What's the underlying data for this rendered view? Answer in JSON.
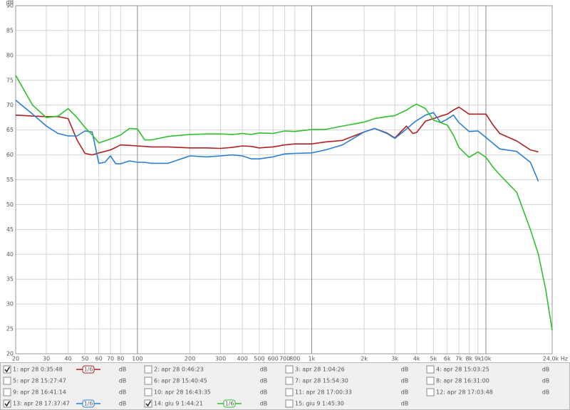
{
  "chart_data": {
    "type": "line",
    "y_unit": "dB",
    "log_x": true,
    "grid": true,
    "xlim": [
      20,
      24000
    ],
    "ylim": [
      20,
      90
    ],
    "yticks": [
      20,
      25,
      30,
      35,
      40,
      45,
      50,
      55,
      60,
      65,
      70,
      75,
      80,
      85,
      90
    ],
    "xticks": [
      20,
      30,
      40,
      50,
      60,
      70,
      80,
      100,
      200,
      300,
      400,
      500,
      600,
      700,
      800,
      {
        "value": 1000,
        "label": "1k"
      },
      {
        "value": 2000,
        "label": "2k"
      },
      {
        "value": 3000,
        "label": "3k"
      },
      {
        "value": 4000,
        "label": "4k"
      },
      {
        "value": 5000,
        "label": "5k"
      },
      {
        "value": 6000,
        "label": "6k"
      },
      {
        "value": 7000,
        "label": "7k"
      },
      {
        "value": 8000,
        "label": "8k"
      },
      {
        "value": 9000,
        "label": "9k"
      },
      {
        "value": 10000,
        "label": "10k"
      },
      {
        "value": 24000,
        "label": "24,0k Hz"
      }
    ],
    "x": [
      20,
      25,
      30,
      35,
      40,
      45,
      50,
      55,
      60,
      65,
      70,
      75,
      80,
      90,
      100,
      110,
      120,
      150,
      200,
      250,
      300,
      350,
      400,
      450,
      500,
      600,
      700,
      800,
      1000,
      1200,
      1500,
      2000,
      2300,
      2700,
      3000,
      3500,
      3800,
      4000,
      4500,
      5000,
      5500,
      6000,
      6500,
      7000,
      8000,
      9000,
      10000,
      11000,
      12000,
      15000,
      18000,
      20000,
      22000,
      24000
    ],
    "series": [
      {
        "name": "1: apr 28 0:35:48",
        "color": "#b02020",
        "label_color": "#c02828",
        "checked": true,
        "smoothing": "1/6",
        "values": [
          68,
          67.8,
          67.7,
          67.7,
          67.3,
          63,
          60.3,
          60,
          60.4,
          60.7,
          61,
          61.5,
          62,
          61.9,
          61.8,
          61.7,
          61.6,
          61.6,
          61.4,
          61.4,
          61.3,
          61.5,
          61.8,
          61.7,
          61.4,
          61.6,
          62,
          62.2,
          62.2,
          62.6,
          62.9,
          64.6,
          65.3,
          64.4,
          63.4,
          65.8,
          64.3,
          64.5,
          66.8,
          67.3,
          67.8,
          68.2,
          69,
          69.6,
          68.2,
          68.2,
          68.2,
          66,
          64.3,
          62.8,
          61,
          60.6,
          null,
          null
        ]
      },
      {
        "name": "13: apr 28 17:37:47",
        "color": "#2a7fd4",
        "label_color": "#2a70c8",
        "checked": true,
        "smoothing": "1/6",
        "values": [
          71,
          68.2,
          65.8,
          64.3,
          63.8,
          63.8,
          64.8,
          64.6,
          58.3,
          58.5,
          59.8,
          58.2,
          58.2,
          58.8,
          58.5,
          58.5,
          58.3,
          58.3,
          59.8,
          59.6,
          59.8,
          60,
          59.8,
          59.2,
          59.2,
          59.6,
          60.2,
          60.3,
          60.4,
          61,
          62,
          64.6,
          65.3,
          64.3,
          63.3,
          65.2,
          66.3,
          66.9,
          68,
          68.5,
          66.5,
          67.2,
          68,
          66.5,
          64.7,
          64.8,
          63.5,
          62.3,
          61.2,
          60.7,
          58.5,
          54.7,
          null,
          null
        ]
      },
      {
        "name": "14: giu 9 1:44:21",
        "color": "#2ec02e",
        "label_color": "#2a9a2a",
        "checked": true,
        "smoothing": "1/6",
        "values": [
          76,
          70,
          67.5,
          67.8,
          69.3,
          67.5,
          65.5,
          64,
          62.4,
          62.8,
          63.2,
          63.6,
          64,
          65.3,
          65.2,
          63,
          63,
          63.7,
          64.1,
          64.2,
          64.2,
          64.1,
          64.3,
          64.1,
          64.4,
          64.3,
          64.8,
          64.7,
          65.1,
          65.1,
          65.8,
          66.6,
          67.3,
          67.7,
          67.9,
          69,
          69.8,
          70.2,
          69.3,
          67,
          66.5,
          66,
          64,
          61.5,
          59.5,
          60.6,
          59.5,
          57.5,
          56,
          52.5,
          45,
          40,
          33,
          24.7
        ]
      }
    ],
    "other_measurements": [
      {
        "name": "2: apr 28 0:46:23",
        "color": "#c03a78",
        "checked": false
      },
      {
        "name": "3: apr 28 1:04:26",
        "color": "#20a080",
        "checked": false
      },
      {
        "name": "4: apr 28 15:03:25",
        "color": "#a040b0",
        "checked": false
      },
      {
        "name": "5: apr 28 15:27:47",
        "color": "#208c90",
        "checked": false
      },
      {
        "name": "6: apr 28 15:40:45",
        "color": "#a02828",
        "checked": false
      },
      {
        "name": "7: apr 28 15:54:30",
        "color": "#6040a8",
        "checked": false
      },
      {
        "name": "8: apr 28 16:31:00",
        "color": "#5080a8",
        "checked": false
      },
      {
        "name": "9: apr 28 16:41:14",
        "color": "#30a070",
        "checked": false
      },
      {
        "name": "10: apr 28 16:43:35",
        "color": "#207020",
        "checked": false
      },
      {
        "name": "11: apr 28 17:00:33",
        "color": "#a040b8",
        "checked": false
      },
      {
        "name": "12: apr 28 17:03:48",
        "color": "#504898",
        "checked": false
      },
      {
        "name": "15: giu 9 1:45:30",
        "color": "#30a8a8",
        "checked": false
      }
    ]
  }
}
